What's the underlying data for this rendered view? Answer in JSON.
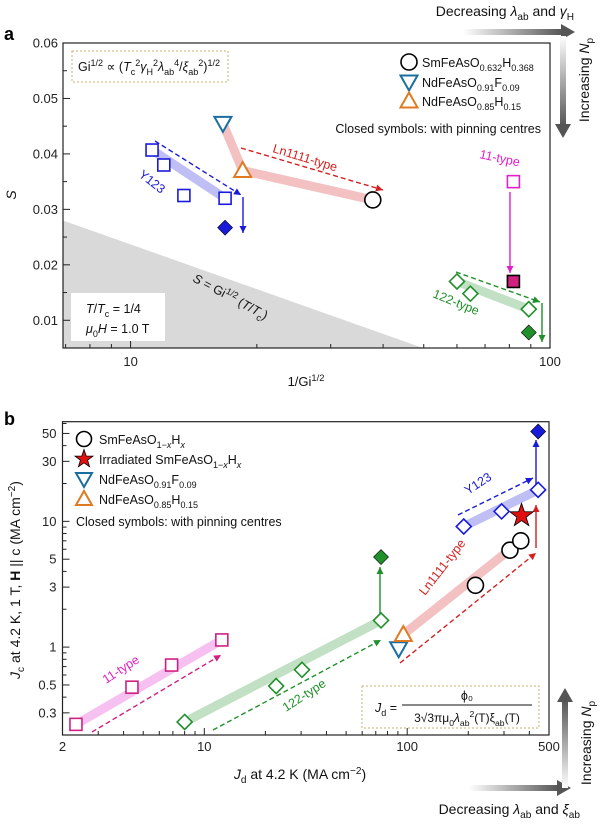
{
  "colors": {
    "y123": "#1a1adb",
    "ln1111": "#d42020",
    "t11": "#e020c8",
    "t122": "#20902a",
    "sm": "#000000",
    "ndf": "#1a6fa0",
    "ndh": "#e07a20",
    "t11b": "#d02080",
    "star": "#e01010"
  },
  "panel_a": {
    "label": "a",
    "formula": [
      [
        "Gi",
        ""
      ],
      [
        "1/2",
        "sup"
      ],
      [
        " ∝ (",
        ""
      ],
      [
        "T",
        "i"
      ],
      [
        "c",
        "sub"
      ],
      [
        "2",
        "sup"
      ],
      [
        "γ",
        "i"
      ],
      [
        "H",
        "sub"
      ],
      [
        "2",
        "sup"
      ],
      [
        "λ",
        "i"
      ],
      [
        "ab",
        "sub"
      ],
      [
        "4",
        "sup"
      ],
      [
        "/",
        ""
      ],
      [
        "ξ",
        "i"
      ],
      [
        "ab",
        "sub"
      ],
      [
        "2",
        "sup"
      ],
      [
        ")",
        ""
      ],
      [
        "1/2",
        "sup"
      ]
    ],
    "legend": [
      {
        "marker": "circle",
        "label": [
          [
            "SmFeAsO",
            ""
          ],
          [
            "0.632",
            "sub"
          ],
          [
            "H",
            ""
          ],
          [
            "0.368",
            "sub"
          ]
        ]
      },
      {
        "marker": "tri-down",
        "label": [
          [
            "NdFeAsO",
            ""
          ],
          [
            "0.91",
            "sub"
          ],
          [
            "F",
            ""
          ],
          [
            "0.09",
            "sub"
          ]
        ]
      },
      {
        "marker": "tri-up",
        "label": [
          [
            "NdFeAsO",
            ""
          ],
          [
            "0.85",
            "sub"
          ],
          [
            "H",
            ""
          ],
          [
            "0.15",
            "sub"
          ]
        ]
      }
    ],
    "closed_note": "Closed symbols: with pinning centres",
    "conditions": [
      [
        [
          "T",
          "i"
        ],
        [
          "/",
          ""
        ],
        [
          "T",
          "i"
        ],
        [
          "c",
          "sub"
        ],
        [
          " = 1/4",
          ""
        ]
      ],
      [
        [
          "μ",
          "i"
        ],
        [
          "0",
          "sub"
        ],
        [
          "H",
          "i"
        ],
        [
          " = 1.0 T",
          ""
        ]
      ]
    ],
    "boundary_label": [
      [
        "S",
        "i"
      ],
      [
        " = Gi",
        ""
      ],
      [
        "1/2",
        "sup"
      ],
      [
        " (",
        ""
      ],
      [
        "T",
        "i"
      ],
      [
        "/",
        ""
      ],
      [
        "T",
        "i"
      ],
      [
        "c",
        "sub"
      ],
      [
        ")",
        ""
      ]
    ],
    "labels": {
      "y123": "Y123",
      "ln1111": "Ln1111-type",
      "t11": "11-type",
      "t122": "122-type"
    },
    "top_arrow_text": [
      [
        "Decreasing ",
        ""
      ],
      [
        "λ",
        "i"
      ],
      [
        "ab",
        "sub"
      ],
      [
        " and ",
        ""
      ],
      [
        "γ",
        "i"
      ],
      [
        "H",
        "sub"
      ]
    ],
    "side_arrow_text": [
      [
        "Increasing ",
        ""
      ],
      [
        "N",
        "i"
      ],
      [
        "p",
        "sub"
      ]
    ]
  },
  "panel_b": {
    "label": "b",
    "legend": [
      {
        "marker": "circle",
        "label": [
          [
            "SmFeAsO",
            ""
          ],
          [
            "1−",
            "sub"
          ],
          [
            "x",
            "subi"
          ],
          [
            "H",
            ""
          ],
          [
            "x",
            "subi"
          ]
        ]
      },
      {
        "marker": "star",
        "label": [
          [
            "Irradiated SmFeAsO",
            ""
          ],
          [
            "1−",
            "sub"
          ],
          [
            "x",
            "subi"
          ],
          [
            "H",
            ""
          ],
          [
            "x",
            "subi"
          ]
        ]
      },
      {
        "marker": "tri-down",
        "label": [
          [
            "NdFeAsO",
            ""
          ],
          [
            "0.91",
            "sub"
          ],
          [
            "F",
            ""
          ],
          [
            "0.09",
            "sub"
          ]
        ]
      },
      {
        "marker": "tri-up",
        "label": [
          [
            "NdFeAsO",
            ""
          ],
          [
            "0.85",
            "sub"
          ],
          [
            "H",
            ""
          ],
          [
            "0.15",
            "sub"
          ]
        ]
      }
    ],
    "closed_note": "Closed symbols: with pinning centres",
    "formula_lhs": [
      [
        "J",
        "i"
      ],
      [
        "d",
        "sub"
      ],
      [
        " =",
        ""
      ]
    ],
    "formula_num": "ϕ₀",
    "formula_den": [
      [
        "3√3πμ",
        ""
      ],
      [
        "0",
        "sub"
      ],
      [
        "λ",
        "i"
      ],
      [
        "ab",
        "sub"
      ],
      [
        "2",
        "sup"
      ],
      [
        "(T)ξ",
        ""
      ],
      [
        "ab",
        "sub"
      ],
      [
        "(T)",
        ""
      ]
    ],
    "labels": {
      "y123": "Y123",
      "ln1111": "Ln1111-type",
      "t11": "11-type",
      "t122": "122-type"
    },
    "bottom_arrow_text": [
      [
        "Decreasing ",
        ""
      ],
      [
        "λ",
        "i"
      ],
      [
        "ab",
        "sub"
      ],
      [
        " and ",
        ""
      ],
      [
        "ξ",
        "i"
      ],
      [
        "ab",
        "sub"
      ]
    ],
    "side_arrow_text": [
      [
        "Increasing ",
        ""
      ],
      [
        "N",
        "i"
      ],
      [
        "p",
        "sub"
      ]
    ]
  },
  "chart_data": [
    {
      "type": "scatter",
      "title": "a",
      "xlabel": [
        [
          "1/Gi",
          ""
        ],
        [
          "1/2",
          "sup"
        ]
      ],
      "ylabel": [
        [
          "S",
          "i"
        ]
      ],
      "xscale": "log",
      "xlim": [
        6.9,
        100
      ],
      "ylim": [
        0.005,
        0.06
      ],
      "xticks": [
        10,
        100
      ],
      "xtick_labels": [
        "10",
        "100"
      ],
      "yticks": [
        0.01,
        0.02,
        0.03,
        0.04,
        0.05,
        0.06
      ],
      "ytick_labels": [
        "0.01",
        "0.02",
        "0.03",
        "0.04",
        "0.05",
        "0.06"
      ],
      "series": [
        {
          "name": "Y123",
          "marker": "square",
          "color": "y123",
          "open": true,
          "points": [
            [
              11.25,
              0.0407
            ],
            [
              12.0,
              0.038
            ],
            [
              13.4,
              0.0325
            ],
            [
              16.8,
              0.032
            ]
          ]
        },
        {
          "name": "Y123 pinning",
          "marker": "diamond",
          "color": "y123",
          "open": false,
          "points": [
            [
              16.8,
              0.0267
            ]
          ]
        },
        {
          "name": "NdFeAsO0.91F0.09",
          "marker": "tri-down",
          "color": "ndf",
          "open": true,
          "points": [
            [
              16.6,
              0.0455
            ]
          ]
        },
        {
          "name": "NdFeAsO0.85H0.15",
          "marker": "tri-up",
          "color": "ndh",
          "open": true,
          "points": [
            [
              18.5,
              0.037
            ]
          ]
        },
        {
          "name": "SmFeAsO0.632H0.368",
          "marker": "circle",
          "color": "sm",
          "open": true,
          "points": [
            [
              37.8,
              0.0317
            ]
          ]
        },
        {
          "name": "11-type",
          "marker": "square",
          "color": "t11",
          "open": true,
          "points": [
            [
              81.8,
              0.035
            ]
          ]
        },
        {
          "name": "11-type pinning",
          "marker": "square",
          "color": "t11b",
          "open": false,
          "points": [
            [
              81.8,
              0.017
            ]
          ]
        },
        {
          "name": "122-type",
          "marker": "diamond",
          "color": "t122",
          "open": true,
          "points": [
            [
              60,
              0.017
            ],
            [
              64.6,
              0.0148
            ],
            [
              89,
              0.012
            ]
          ]
        },
        {
          "name": "122-type pinning",
          "marker": "diamond",
          "color": "t122",
          "open": false,
          "points": [
            [
              89,
              0.0078
            ]
          ]
        }
      ],
      "boundary": [
        [
          6.9,
          0.028
        ],
        [
          49.8,
          0.005
        ]
      ]
    },
    {
      "type": "scatter",
      "title": "b",
      "xlabel": [
        [
          "J",
          "i"
        ],
        [
          "d",
          "sub"
        ],
        [
          " at 4.2 K (MA cm",
          ""
        ],
        [
          "−2",
          "sup"
        ],
        [
          ")",
          ""
        ]
      ],
      "ylabel": [
        [
          "J",
          "i"
        ],
        [
          "c",
          "sub"
        ],
        [
          " at 4.2 K, 1 T, ",
          ""
        ],
        [
          "H",
          "b"
        ],
        [
          " || c (MA cm",
          ""
        ],
        [
          "−2",
          "sup"
        ],
        [
          ")",
          ""
        ]
      ],
      "xscale": "log",
      "yscale": "log",
      "xlim": [
        2,
        500
      ],
      "ylim": [
        0.2,
        62
      ],
      "xticks": [
        2,
        10,
        100,
        500
      ],
      "xtick_labels": [
        "2",
        "10",
        "100",
        "500"
      ],
      "yticks": [
        0.3,
        0.5,
        1,
        3,
        5,
        10,
        30,
        50
      ],
      "ytick_labels": [
        "0.3",
        "0.5",
        "1",
        "3",
        "5",
        "10",
        "30",
        "50"
      ],
      "series": [
        {
          "name": "11-type",
          "marker": "square",
          "color": "t11b",
          "open": true,
          "points": [
            [
              2.33,
              0.243
            ],
            [
              4.4,
              0.48
            ],
            [
              6.9,
              0.72
            ],
            [
              12.2,
              1.14
            ]
          ]
        },
        {
          "name": "122-type",
          "marker": "diamond",
          "color": "t122",
          "open": true,
          "points": [
            [
              8.0,
              0.254
            ],
            [
              22.6,
              0.49
            ],
            [
              30.3,
              0.66
            ],
            [
              74.3,
              1.63
            ]
          ]
        },
        {
          "name": "122-type pinning",
          "marker": "diamond",
          "color": "t122",
          "open": false,
          "points": [
            [
              74.3,
              5.2
            ]
          ]
        },
        {
          "name": "NdFeAsO0.91F0.09",
          "marker": "tri-down",
          "color": "ndf",
          "open": true,
          "points": [
            [
              90.8,
              0.97
            ]
          ]
        },
        {
          "name": "NdFeAsO0.85H0.15",
          "marker": "tri-up",
          "color": "ndh",
          "open": true,
          "points": [
            [
              95.7,
              1.26
            ]
          ]
        },
        {
          "name": "SmFeAsO1-xHx",
          "marker": "circle",
          "color": "sm",
          "open": true,
          "points": [
            [
              217,
              3.1
            ],
            [
              321,
              5.9
            ],
            [
              363,
              7.0
            ]
          ]
        },
        {
          "name": "Irradiated SmFeAsO1-xHx",
          "marker": "star",
          "color": "star",
          "open": false,
          "points": [
            [
              366,
              11.1
            ]
          ]
        },
        {
          "name": "Y123",
          "marker": "diamond",
          "color": "y123",
          "open": true,
          "points": [
            [
              190,
              9.1
            ],
            [
              292,
              12.0
            ],
            [
              442,
              17.8
            ]
          ]
        },
        {
          "name": "Y123 pinning",
          "marker": "diamond",
          "color": "y123",
          "open": false,
          "points": [
            [
              442,
              51.8
            ]
          ]
        }
      ]
    }
  ]
}
